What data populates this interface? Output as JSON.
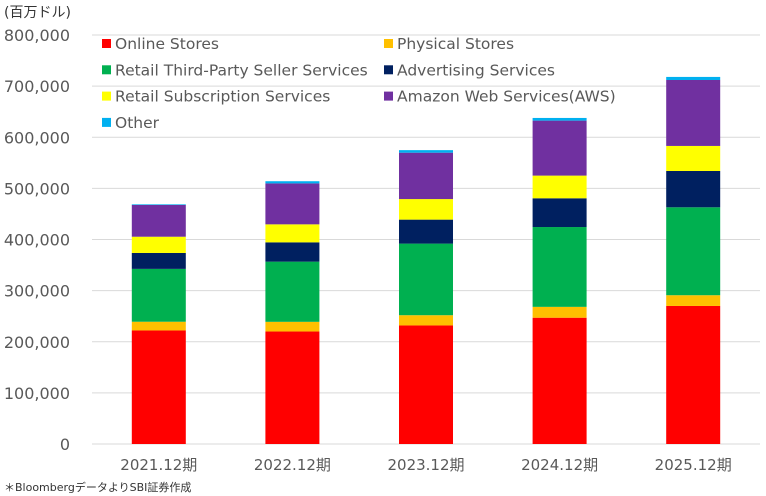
{
  "chart_data": {
    "type": "bar",
    "stacked": true,
    "unit_label": "(百万ドル)",
    "source_note": "＊BloombergデータよりSBI証券作成",
    "categories": [
      "2021.12期",
      "2022.12期",
      "2023.12期",
      "2024.12期",
      "2025.12期"
    ],
    "ylim": [
      0,
      800000
    ],
    "yticks": [
      "0",
      "100,000",
      "200,000",
      "300,000",
      "400,000",
      "500,000",
      "600,000",
      "700,000",
      "800,000"
    ],
    "grid": true,
    "legend_position": "top-left inside",
    "series": [
      {
        "name": "Online Stores",
        "color": "#FF0000",
        "values": [
          222075,
          220004,
          231872,
          247029,
          270000
        ]
      },
      {
        "name": "Physical Stores",
        "color": "#FFC000",
        "values": [
          17075,
          18963,
          20030,
          21215,
          21000
        ]
      },
      {
        "name": "Retail Third-Party Seller Services",
        "color": "#00B050",
        "values": [
          103366,
          117716,
          140053,
          156146,
          172000
        ]
      },
      {
        "name": "Advertising Services",
        "color": "#002060",
        "values": [
          31160,
          37739,
          46906,
          56214,
          71000
        ]
      },
      {
        "name": "Retail Subscription Services",
        "color": "#FFFF00",
        "values": [
          31768,
          35218,
          40209,
          44374,
          49000
        ]
      },
      {
        "name": "Amazon Web Services(AWS)",
        "color": "#7030A0",
        "values": [
          62202,
          80096,
          90757,
          107556,
          129000
        ]
      },
      {
        "name": "Other",
        "color": "#00B0F0",
        "values": [
          1211,
          4247,
          4958,
          5220,
          6000
        ]
      }
    ]
  }
}
